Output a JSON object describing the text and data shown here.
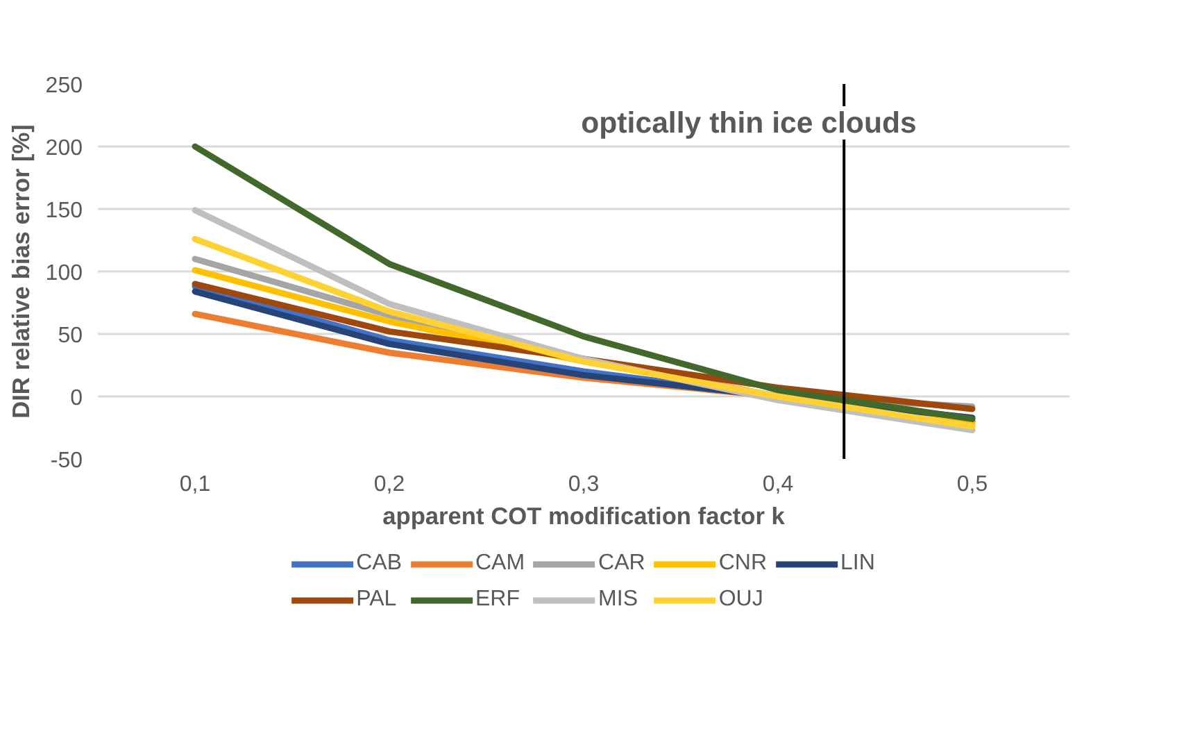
{
  "chart_data": {
    "type": "line",
    "xlabel": "apparent COT modification factor k",
    "ylabel": "DIR relative bias error [%]",
    "x": [
      0.1,
      0.2,
      0.3,
      0.4,
      0.5
    ],
    "xlim": [
      0.05,
      0.55
    ],
    "xticks": [
      {
        "value": 0.1,
        "label": "0,1"
      },
      {
        "value": 0.2,
        "label": "0,2"
      },
      {
        "value": 0.3,
        "label": "0,3"
      },
      {
        "value": 0.4,
        "label": "0,4"
      },
      {
        "value": 0.5,
        "label": "0,5"
      }
    ],
    "ylim": [
      -50,
      250
    ],
    "yticks": [
      -50,
      0,
      50,
      100,
      150,
      200,
      250
    ],
    "grid": "y",
    "legend": "bottom",
    "line_style": "solid",
    "marker": "none",
    "series": [
      {
        "name": "CAB",
        "color": "#4472c4",
        "values": [
          88,
          45,
          20,
          0,
          -20
        ]
      },
      {
        "name": "CAM",
        "color": "#ed7d31",
        "values": [
          66,
          35,
          15,
          0,
          -20
        ]
      },
      {
        "name": "CAR",
        "color": "#a5a5a5",
        "values": [
          110,
          65,
          30,
          0,
          -8
        ]
      },
      {
        "name": "CNR",
        "color": "#ffc000",
        "values": [
          101,
          60,
          28,
          0,
          -22
        ]
      },
      {
        "name": "LIN",
        "color": "#264478",
        "values": [
          84,
          42,
          17,
          0,
          -17
        ]
      },
      {
        "name": "PAL",
        "color": "#9e480e",
        "values": [
          90,
          52,
          30,
          7,
          -10
        ]
      },
      {
        "name": "ERF",
        "color": "#43682b",
        "values": [
          200,
          106,
          48,
          5,
          -18
        ]
      },
      {
        "name": "MIS",
        "color": "#bfbfbf",
        "values": [
          149,
          74,
          30,
          -3,
          -27
        ]
      },
      {
        "name": "OUJ",
        "color": "#ffd133",
        "values": [
          126,
          68,
          28,
          0,
          -24
        ]
      }
    ],
    "ref_lines": [
      {
        "axis": "x",
        "value": 0.434,
        "color": "#000000",
        "line_style": "solid"
      }
    ],
    "annotations": [
      "optically thin ice clouds"
    ]
  }
}
